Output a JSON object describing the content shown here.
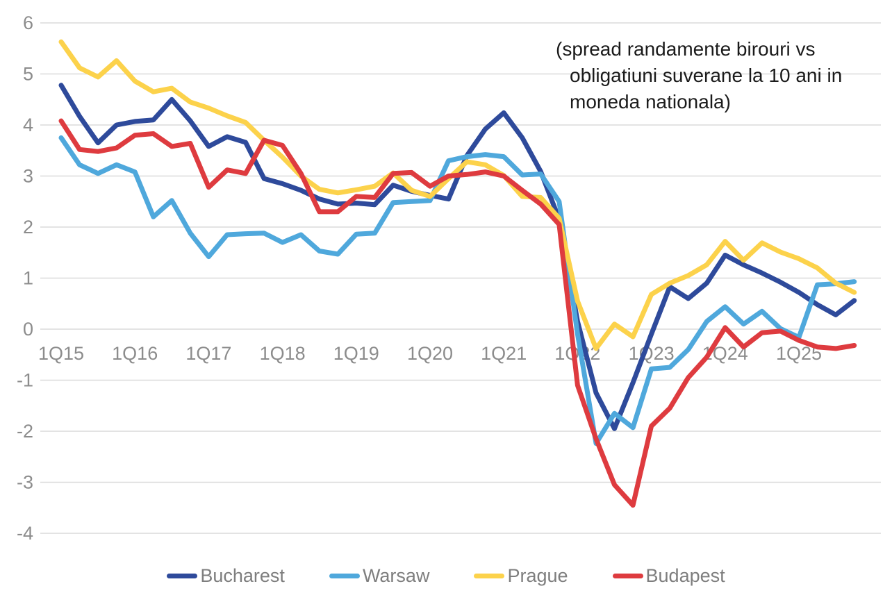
{
  "chart_data": {
    "type": "line",
    "title": "",
    "annotation": {
      "line1": "(spread randamente birouri vs",
      "line2": "obligatiuni suverane la 10 ani in",
      "line3": "moneda nationala)"
    },
    "categories": [
      "1Q15",
      "2Q15",
      "3Q15",
      "4Q15",
      "1Q16",
      "2Q16",
      "3Q16",
      "4Q16",
      "1Q17",
      "2Q17",
      "3Q17",
      "4Q17",
      "1Q18",
      "2Q18",
      "3Q18",
      "4Q18",
      "1Q19",
      "2Q19",
      "3Q19",
      "4Q19",
      "1Q20",
      "2Q20",
      "3Q20",
      "4Q20",
      "1Q21",
      "2Q21",
      "3Q21",
      "4Q21",
      "1Q22",
      "2Q22",
      "3Q22",
      "4Q22",
      "1Q23",
      "2Q23",
      "3Q23",
      "4Q23",
      "1Q24",
      "2Q24",
      "3Q24",
      "4Q24",
      "1Q25",
      "2Q25",
      "3Q25",
      "4Q25"
    ],
    "x_axis_tick_labels": [
      "1Q15",
      "1Q16",
      "1Q17",
      "1Q18",
      "1Q19",
      "1Q20",
      "1Q21",
      "1Q22",
      "1Q23",
      "1Q24",
      "1Q25"
    ],
    "y_ticks": [
      6,
      5,
      4,
      3,
      2,
      1,
      0,
      -1,
      -2,
      -3,
      -4
    ],
    "ylim": [
      -4,
      6
    ],
    "grid": "horizontal",
    "legend_position": "bottom",
    "series": [
      {
        "name": "Bucharest",
        "color": "#2E4A9B",
        "values": [
          4.78,
          4.17,
          3.65,
          4.0,
          4.07,
          4.1,
          4.5,
          4.08,
          3.58,
          3.77,
          3.66,
          2.95,
          2.85,
          2.72,
          2.55,
          2.45,
          2.47,
          2.44,
          2.82,
          2.7,
          2.62,
          2.55,
          3.4,
          3.92,
          4.24,
          3.75,
          3.09,
          2.15,
          0.15,
          -1.25,
          -1.95,
          -1.05,
          -0.1,
          0.83,
          0.6,
          0.9,
          1.45,
          1.26,
          1.1,
          0.92,
          0.72,
          0.48,
          0.28,
          0.56
        ]
      },
      {
        "name": "Warsaw",
        "color": "#4FA8DC",
        "values": [
          3.75,
          3.22,
          3.05,
          3.22,
          3.08,
          2.2,
          2.52,
          1.88,
          1.42,
          1.85,
          1.87,
          1.88,
          1.7,
          1.85,
          1.53,
          1.47,
          1.86,
          1.88,
          2.48,
          2.5,
          2.52,
          3.3,
          3.38,
          3.42,
          3.38,
          3.02,
          3.04,
          2.5,
          -0.1,
          -2.24,
          -1.65,
          -1.93,
          -0.78,
          -0.75,
          -0.4,
          0.15,
          0.44,
          0.1,
          0.35,
          0.01,
          -0.16,
          0.87,
          0.89,
          0.93
        ]
      },
      {
        "name": "Prague",
        "color": "#FCD24B",
        "values": [
          5.63,
          5.12,
          4.94,
          5.26,
          4.86,
          4.65,
          4.72,
          4.45,
          4.33,
          4.18,
          4.05,
          3.7,
          3.37,
          3.0,
          2.74,
          2.67,
          2.73,
          2.8,
          3.06,
          2.72,
          2.6,
          2.95,
          3.28,
          3.22,
          3.01,
          2.6,
          2.58,
          2.17,
          0.55,
          -0.38,
          0.1,
          -0.15,
          0.68,
          0.9,
          1.05,
          1.26,
          1.72,
          1.35,
          1.69,
          1.51,
          1.38,
          1.2,
          0.9,
          0.72
        ]
      },
      {
        "name": "Budapest",
        "color": "#DE3B3F",
        "values": [
          4.08,
          3.52,
          3.48,
          3.55,
          3.8,
          3.83,
          3.58,
          3.64,
          2.78,
          3.12,
          3.05,
          3.7,
          3.6,
          3.05,
          2.3,
          2.3,
          2.6,
          2.58,
          3.05,
          3.07,
          2.8,
          3.0,
          3.03,
          3.08,
          3.0,
          2.72,
          2.45,
          2.05,
          -1.1,
          -2.15,
          -3.05,
          -3.45,
          -1.9,
          -1.55,
          -0.95,
          -0.55,
          0.03,
          -0.35,
          -0.07,
          -0.04,
          -0.22,
          -0.35,
          -0.38,
          -0.32
        ]
      }
    ]
  },
  "colors": {
    "background": "#FFFFFF",
    "gridline": "#DADADA",
    "axis_label": "#8C8C8C",
    "legend_text": "#7E7E7E",
    "annotation_text": "#1B1B1B"
  }
}
